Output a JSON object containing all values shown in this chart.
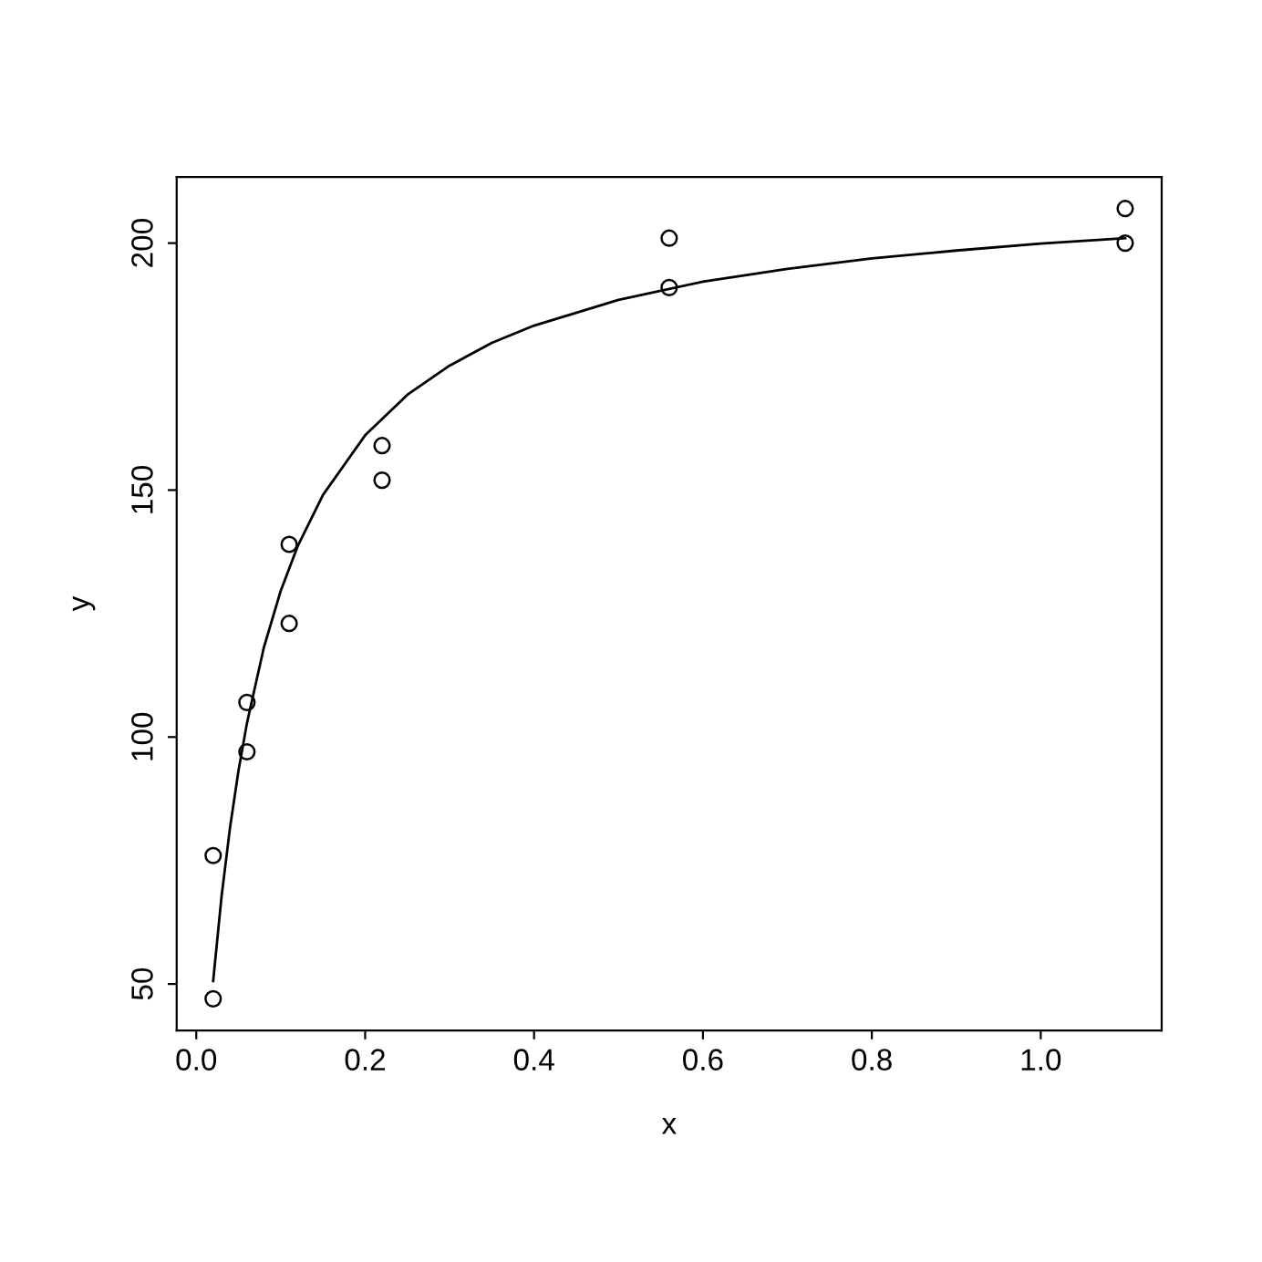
{
  "chart_data": {
    "type": "scatter",
    "xlabel": "x",
    "ylabel": "y",
    "xlim": [
      -0.0232,
      1.1432
    ],
    "ylim": [
      40.6,
      213.4
    ],
    "xticks": [
      {
        "value": 0,
        "label": "0.0"
      },
      0.2,
      0.4,
      0.6,
      0.8,
      {
        "value": 1,
        "label": "1.0"
      }
    ],
    "yticks": [
      50,
      100,
      150,
      200
    ],
    "grid": false,
    "legend": false,
    "series": [
      {
        "marker": "circle",
        "color": "#000000",
        "x": [
          0.02,
          0.02,
          0.06,
          0.06,
          0.11,
          0.11,
          0.22,
          0.22,
          0.56,
          0.56,
          1.1,
          1.1
        ],
        "values": [
          76,
          47,
          97,
          107,
          123,
          139,
          159,
          152,
          191,
          201,
          207,
          200
        ]
      },
      {
        "type": "line",
        "marker": "none",
        "line_style": "solid",
        "color": "#000000",
        "x": [
          0.02,
          0.03,
          0.04,
          0.05,
          0.06,
          0.08,
          0.1,
          0.12,
          0.15,
          0.2,
          0.25,
          0.3,
          0.35,
          0.4,
          0.5,
          0.6,
          0.7,
          0.8,
          0.9,
          1.0,
          1.1
        ],
        "values": [
          50.6,
          67.8,
          81.7,
          93.2,
          102.8,
          118.1,
          129.6,
          138.6,
          149.0,
          161.1,
          169.3,
          175.2,
          179.8,
          183.3,
          188.5,
          192.2,
          194.8,
          196.9,
          198.5,
          199.9,
          201.0
        ]
      }
    ]
  }
}
